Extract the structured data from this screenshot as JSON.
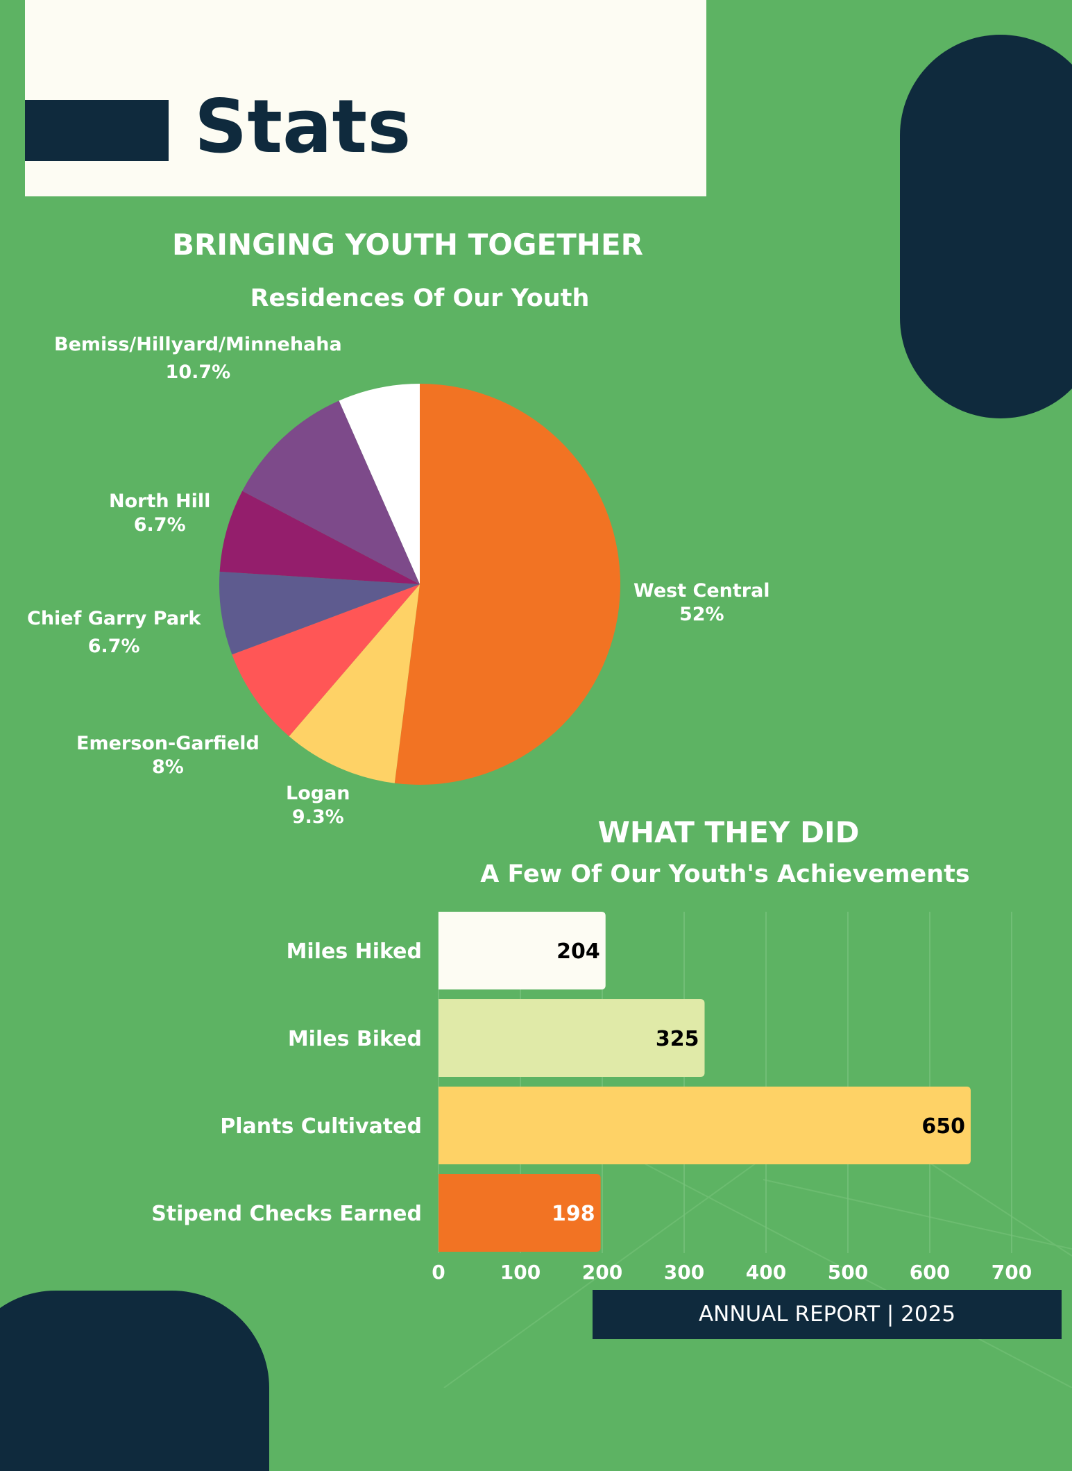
{
  "header": {
    "title": "Stats"
  },
  "footer": {
    "text": "ANNUAL REPORT | 2025"
  },
  "colors": {
    "background": "#5db363",
    "navy": "#0f2a3d",
    "cream": "#fdfcf3"
  },
  "chart_data": [
    {
      "type": "pie",
      "heading": "BRINGING YOUTH TOGETHER",
      "title": "Residences Of Our Youth",
      "slices": [
        {
          "name": "West Central",
          "label": "52%",
          "value": 52,
          "color": "#f27323"
        },
        {
          "name": "Logan",
          "label": "9.3%",
          "value": 9.3,
          "color": "#fed266"
        },
        {
          "name": "Emerson-Garfield",
          "label": "8%",
          "value": 8,
          "color": "#ff5656"
        },
        {
          "name": "Chief Garry Park",
          "label": "6.7%",
          "value": 6.7,
          "color": "#5e5b8f"
        },
        {
          "name": "North Hill",
          "label": "6.7%",
          "value": 6.7,
          "color": "#941e6c"
        },
        {
          "name": "Bemiss/Hillyard/Minnehaha",
          "label": "10.7%",
          "value": 10.7,
          "color": "#7d4a8a"
        },
        {
          "name": "",
          "label": "",
          "value": 6.6,
          "color": "#ffffff"
        }
      ]
    },
    {
      "type": "bar",
      "orientation": "horizontal",
      "heading": "WHAT THEY DID",
      "title": "A Few Of Our Youth's Achievements",
      "categories": [
        "Miles Hiked",
        "Miles Biked",
        "Plants Cultivated",
        "Stipend Checks Earned"
      ],
      "values": [
        204,
        325,
        650,
        198
      ],
      "value_labels": [
        "204",
        "325",
        "650",
        "198"
      ],
      "colors": [
        "#fdfcf3",
        "#e0eaa8",
        "#fed266",
        "#f27323"
      ],
      "label_colors": [
        "#000000",
        "#000000",
        "#000000",
        "#ffffff"
      ],
      "xlim": [
        0,
        700
      ],
      "xticks": [
        "0",
        "100",
        "200",
        "300",
        "400",
        "500",
        "600",
        "700"
      ],
      "grid": true
    }
  ]
}
